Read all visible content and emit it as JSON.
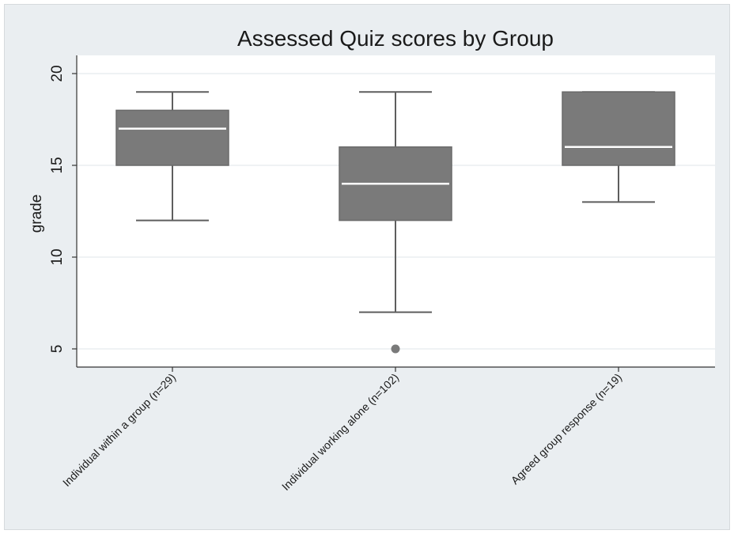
{
  "chart_data": {
    "type": "box",
    "title": "Assessed Quiz scores by Group",
    "ylabel": "grade",
    "xlabel": "",
    "ylim": [
      4,
      21
    ],
    "yticks": [
      5,
      10,
      15,
      20
    ],
    "grid": true,
    "categories": [
      "Individual within a group (n=29)",
      "Individual working alone (n=102)",
      "Agreed group response (n=19)"
    ],
    "boxes": [
      {
        "whisker_low": 12,
        "q1": 15,
        "median": 17,
        "q3": 18,
        "whisker_high": 19,
        "outliers": []
      },
      {
        "whisker_low": 7,
        "q1": 12,
        "median": 14,
        "q3": 16,
        "whisker_high": 19,
        "outliers": [
          5
        ]
      },
      {
        "whisker_low": 13,
        "q1": 15,
        "median": 16,
        "q3": 19,
        "whisker_high": 19,
        "outliers": []
      }
    ],
    "colors": {
      "box": "#7a7a7a",
      "median": "#ffffff",
      "whisker": "#5e5e5e",
      "outlier": "#7a7a7a",
      "grid": "#eaeef1",
      "axis": "#333333",
      "plot_bg": "#ffffff",
      "outer_bg": "#eaeef1"
    }
  }
}
